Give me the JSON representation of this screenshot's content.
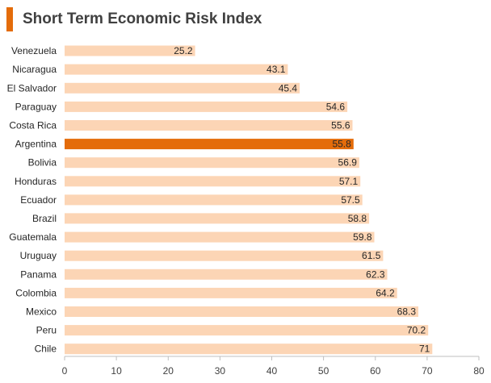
{
  "header": {
    "title": "Short Term Economic Risk Index"
  },
  "colors": {
    "accent": "#e46c0a",
    "bar": "#fcd5b5",
    "highlight": "#e46c0a",
    "axis": "#bfbfbf"
  },
  "chart_data": {
    "type": "bar",
    "orientation": "horizontal",
    "title": "Short Term Economic Risk Index",
    "xlabel": "",
    "ylabel": "",
    "xlim": [
      0,
      80
    ],
    "xticks": [
      0,
      10,
      20,
      30,
      40,
      50,
      60,
      70,
      80
    ],
    "grid": false,
    "categories": [
      "Venezuela",
      "Nicaragua",
      "El Salvador",
      "Paraguay",
      "Costa Rica",
      "Argentina",
      "Bolivia",
      "Honduras",
      "Ecuador",
      "Brazil",
      "Guatemala",
      "Uruguay",
      "Panama",
      "Colombia",
      "Mexico",
      "Peru",
      "Chile"
    ],
    "values": [
      25.2,
      43.1,
      45.4,
      54.6,
      55.6,
      55.8,
      56.9,
      57.1,
      57.5,
      58.8,
      59.8,
      61.5,
      62.3,
      64.2,
      68.3,
      70.2,
      71
    ],
    "highlight": "Argentina"
  }
}
